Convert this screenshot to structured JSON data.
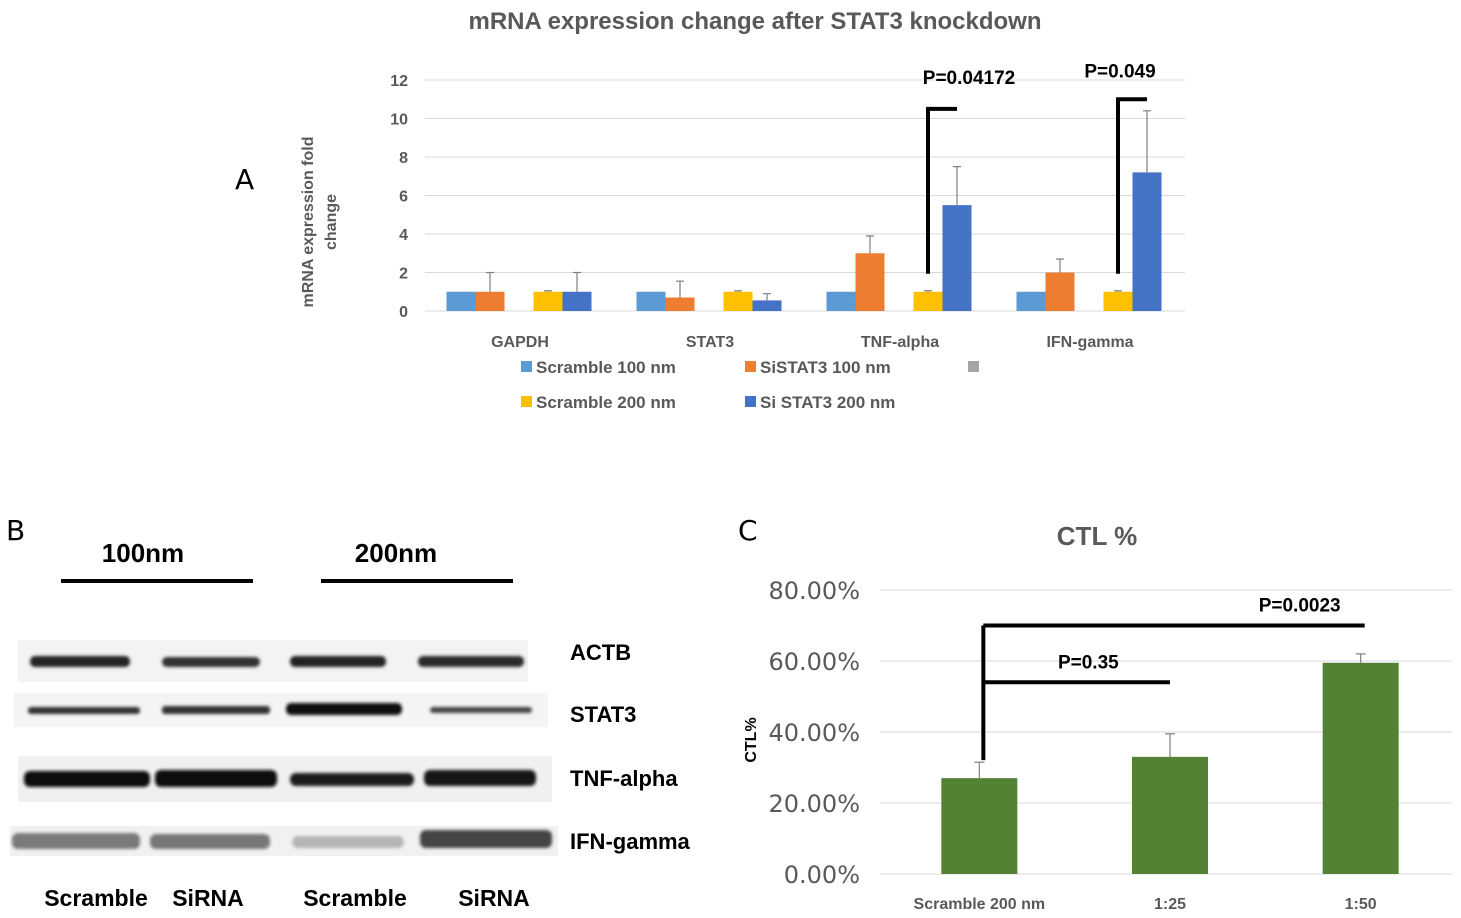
{
  "panel_labels": {
    "a": "A",
    "b": "B",
    "c": "C"
  },
  "chart_data": [
    {
      "type": "bar",
      "title": "mRNA expression change after STAT3 knockdown",
      "xlabel": "",
      "ylabel": "mRNA expression fold change",
      "ylim": [
        0,
        12
      ],
      "yticks": [
        0,
        2,
        4,
        6,
        8,
        10,
        12
      ],
      "categories": [
        "GAPDH",
        "STAT3",
        "TNF-alpha",
        "IFN-gamma"
      ],
      "series": [
        {
          "name": "Scramble 100 nm",
          "color": "#5B9BD5",
          "values": [
            1,
            1,
            1,
            1
          ],
          "errors": [
            0,
            0,
            0,
            0
          ]
        },
        {
          "name": "SiSTAT3 100 nm",
          "color": "#ED7D31",
          "values": [
            1,
            0.7,
            3,
            2
          ],
          "errors": [
            1,
            0.85,
            0.9,
            0.7
          ]
        },
        {
          "name": "",
          "color": "#A5A5A5",
          "values": [
            0,
            0,
            0,
            0
          ],
          "errors": [
            0,
            0,
            0,
            0
          ]
        },
        {
          "name": "Scramble 200 nm",
          "color": "#FFC000",
          "values": [
            1,
            1,
            1,
            1
          ],
          "errors": [
            0.05,
            0.05,
            0.05,
            0.05
          ]
        },
        {
          "name": "Si STAT3 200 nm",
          "color": "#4472C4",
          "values": [
            1,
            0.55,
            5.5,
            7.2
          ],
          "errors": [
            1,
            0.35,
            2,
            3.2
          ]
        }
      ],
      "annotations": [
        {
          "text": "P=0.04172",
          "category": "TNF-alpha",
          "value": 10.5
        },
        {
          "text": "P=0.049",
          "category": "IFN-gamma",
          "value": 11
        }
      ],
      "legend": "bottom"
    },
    {
      "type": "bar",
      "title": "CTL %",
      "xlabel": "",
      "ylabel": "CTL%",
      "ylim": [
        0,
        80
      ],
      "yticks": [
        "0.00%",
        "20.00%",
        "40.00%",
        "60.00%",
        "80.00%"
      ],
      "categories": [
        "Scramble 200 nm",
        "1:25",
        "1:50"
      ],
      "values": [
        27,
        33,
        59.5
      ],
      "errors": [
        4.5,
        6.5,
        2.5
      ],
      "color": "#548235",
      "annotations": [
        {
          "text": "P=0.35",
          "from": "Scramble 200 nm",
          "to": "1:25",
          "value": 54
        },
        {
          "text": "P=0.0023",
          "from": "Scramble 200 nm",
          "to": "1:50",
          "value": 70
        }
      ]
    }
  ],
  "blot": {
    "conc_labels": [
      "100nm",
      "200nm"
    ],
    "bands": [
      "ACTB",
      "STAT3",
      "TNF-alpha",
      "IFN-gamma"
    ],
    "lanes": [
      "Scramble",
      "SiRNA",
      "Scramble",
      "SiRNA"
    ]
  }
}
